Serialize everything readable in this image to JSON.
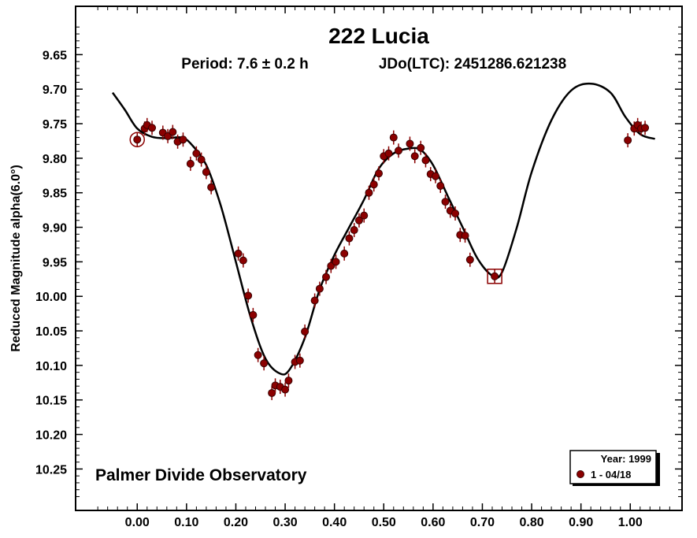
{
  "chart_data": {
    "type": "scatter",
    "title": "222 Lucia",
    "subtitle_period": "Period: 7.6 ± 0.2 h",
    "subtitle_epoch": "JDo(LTC): 2451286.621238",
    "ylabel": "Reduced Magnitude alpha(6.0°)",
    "xlabel": "",
    "annotation": "Palmer Divide Observatory",
    "y_inverted": true,
    "xlim": [
      -0.125,
      1.105
    ],
    "ylim": [
      9.58,
      10.31
    ],
    "x_ticks": [
      0.0,
      0.1,
      0.2,
      0.3,
      0.4,
      0.5,
      0.6,
      0.7,
      0.8,
      0.9,
      1.0
    ],
    "x_tick_labels": [
      "0.00",
      "0.10",
      "0.20",
      "0.30",
      "0.40",
      "0.50",
      "0.60",
      "0.70",
      "0.80",
      "0.90",
      "1.00"
    ],
    "y_ticks": [
      9.65,
      9.7,
      9.75,
      9.8,
      9.85,
      9.9,
      9.95,
      10.0,
      10.05,
      10.1,
      10.15,
      10.2,
      10.25
    ],
    "y_tick_labels": [
      "9.65",
      "9.70",
      "9.75",
      "9.80",
      "9.85",
      "9.90",
      "9.95",
      "10.00",
      "10.05",
      "10.10",
      "10.15",
      "10.20",
      "10.25"
    ],
    "grid": false,
    "legend": {
      "placement": "bottom-right",
      "header": "Year: 1999",
      "entries": [
        {
          "label": "1 - 04/18",
          "color": "#8b0000"
        }
      ]
    },
    "marker_color": "#8b0000",
    "marker_outline": "#3a0000",
    "curve_color": "#000000",
    "series": [
      {
        "name": "1 - 04/18",
        "points": [
          [
            0.0,
            9.773
          ],
          [
            0.015,
            9.757
          ],
          [
            0.02,
            9.752
          ],
          [
            0.03,
            9.756
          ],
          [
            0.052,
            9.763
          ],
          [
            0.062,
            9.768
          ],
          [
            0.072,
            9.762
          ],
          [
            0.082,
            9.776
          ],
          [
            0.093,
            9.773
          ],
          [
            0.108,
            9.808
          ],
          [
            0.12,
            9.793
          ],
          [
            0.13,
            9.802
          ],
          [
            0.14,
            9.82
          ],
          [
            0.15,
            9.842
          ],
          [
            0.205,
            9.938
          ],
          [
            0.215,
            9.948
          ],
          [
            0.225,
            9.999
          ],
          [
            0.235,
            10.027
          ],
          [
            0.245,
            10.085
          ],
          [
            0.257,
            10.097
          ],
          [
            0.273,
            10.14
          ],
          [
            0.28,
            10.129
          ],
          [
            0.29,
            10.131
          ],
          [
            0.3,
            10.135
          ],
          [
            0.307,
            10.122
          ],
          [
            0.32,
            10.095
          ],
          [
            0.33,
            10.093
          ],
          [
            0.34,
            10.051
          ],
          [
            0.36,
            10.006
          ],
          [
            0.37,
            9.989
          ],
          [
            0.383,
            9.972
          ],
          [
            0.393,
            9.956
          ],
          [
            0.403,
            9.95
          ],
          [
            0.42,
            9.938
          ],
          [
            0.43,
            9.916
          ],
          [
            0.44,
            9.904
          ],
          [
            0.45,
            9.89
          ],
          [
            0.46,
            9.883
          ],
          [
            0.47,
            9.85
          ],
          [
            0.48,
            9.838
          ],
          [
            0.49,
            9.822
          ],
          [
            0.5,
            9.797
          ],
          [
            0.51,
            9.793
          ],
          [
            0.52,
            9.77
          ],
          [
            0.53,
            9.789
          ],
          [
            0.553,
            9.779
          ],
          [
            0.563,
            9.797
          ],
          [
            0.575,
            9.785
          ],
          [
            0.585,
            9.803
          ],
          [
            0.595,
            9.823
          ],
          [
            0.605,
            9.826
          ],
          [
            0.615,
            9.84
          ],
          [
            0.625,
            9.863
          ],
          [
            0.635,
            9.876
          ],
          [
            0.645,
            9.88
          ],
          [
            0.655,
            9.911
          ],
          [
            0.665,
            9.912
          ],
          [
            0.675,
            9.947
          ],
          [
            0.725,
            9.971
          ],
          [
            0.995,
            9.774
          ],
          [
            1.008,
            9.757
          ],
          [
            1.015,
            9.752
          ],
          [
            1.022,
            9.757
          ],
          [
            1.03,
            9.756
          ]
        ]
      }
    ],
    "fit_curve": [
      [
        -0.05,
        9.705
      ],
      [
        -0.025,
        9.73
      ],
      [
        0.0,
        9.757
      ],
      [
        0.03,
        9.769
      ],
      [
        0.06,
        9.771
      ],
      [
        0.09,
        9.77
      ],
      [
        0.11,
        9.78
      ],
      [
        0.14,
        9.81
      ],
      [
        0.17,
        9.87
      ],
      [
        0.2,
        9.95
      ],
      [
        0.23,
        10.03
      ],
      [
        0.26,
        10.09
      ],
      [
        0.29,
        10.112
      ],
      [
        0.31,
        10.105
      ],
      [
        0.34,
        10.06
      ],
      [
        0.37,
        9.99
      ],
      [
        0.4,
        9.94
      ],
      [
        0.43,
        9.9
      ],
      [
        0.46,
        9.86
      ],
      [
        0.49,
        9.815
      ],
      [
        0.52,
        9.793
      ],
      [
        0.55,
        9.786
      ],
      [
        0.575,
        9.788
      ],
      [
        0.6,
        9.81
      ],
      [
        0.63,
        9.855
      ],
      [
        0.66,
        9.9
      ],
      [
        0.69,
        9.945
      ],
      [
        0.72,
        9.97
      ],
      [
        0.74,
        9.965
      ],
      [
        0.77,
        9.9
      ],
      [
        0.8,
        9.82
      ],
      [
        0.84,
        9.745
      ],
      [
        0.88,
        9.702
      ],
      [
        0.92,
        9.692
      ],
      [
        0.96,
        9.705
      ],
      [
        0.99,
        9.74
      ],
      [
        1.02,
        9.765
      ],
      [
        1.05,
        9.772
      ]
    ],
    "highlight_circle": [
      0.0,
      9.773
    ],
    "highlight_square": [
      0.725,
      9.971
    ]
  }
}
